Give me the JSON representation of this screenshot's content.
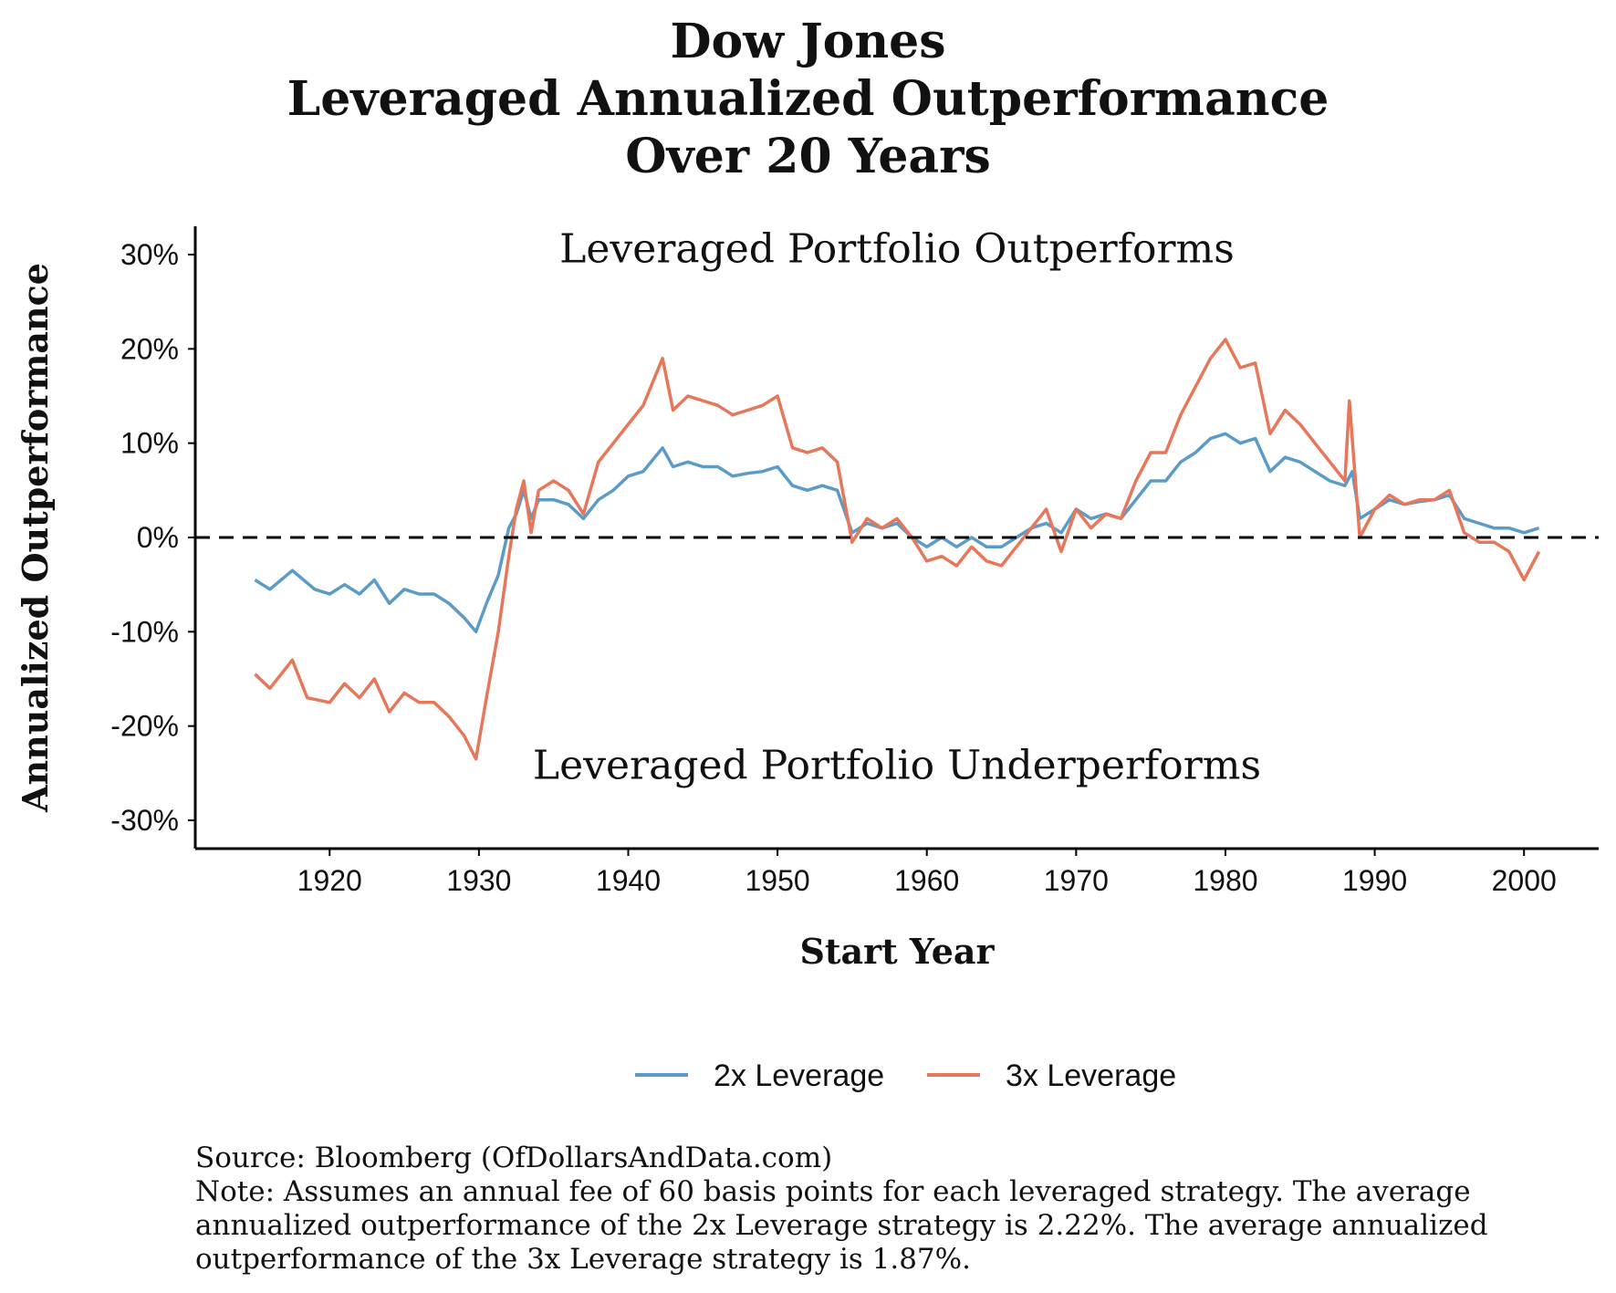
{
  "chart_data": {
    "type": "line",
    "title_lines": [
      "Dow Jones",
      "Leveraged Annualized Outperformance",
      "Over 20 Years"
    ],
    "xlabel": "Start Year",
    "ylabel": "Annualized Outperformance",
    "xlim": [
      1911,
      2005
    ],
    "ylim": [
      -33,
      33
    ],
    "xticks": [
      1920,
      1930,
      1940,
      1950,
      1960,
      1970,
      1980,
      1990,
      2000
    ],
    "yticks": [
      -30,
      -20,
      -10,
      0,
      10,
      20,
      30
    ],
    "ytick_labels": [
      "-30%",
      "-20%",
      "-10%",
      "0%",
      "10%",
      "20%",
      "30%"
    ],
    "reference_line": {
      "y": 0,
      "style": "dashed",
      "color": "#000000"
    },
    "annotations": {
      "top": "Leveraged Portfolio Outperforms",
      "bottom": "Leveraged Portfolio Underperforms"
    },
    "legend_position": "bottom",
    "grid": false,
    "series": [
      {
        "name": "2x Leverage",
        "color": "#5b9bc7",
        "points": [
          [
            1915,
            -4.5
          ],
          [
            1916,
            -5.5
          ],
          [
            1917.5,
            -3.5
          ],
          [
            1919,
            -5.5
          ],
          [
            1920,
            -6
          ],
          [
            1921,
            -5
          ],
          [
            1922,
            -6
          ],
          [
            1923,
            -4.5
          ],
          [
            1924,
            -7
          ],
          [
            1925,
            -5.5
          ],
          [
            1926,
            -6
          ],
          [
            1927,
            -6
          ],
          [
            1928,
            -7
          ],
          [
            1929,
            -8.5
          ],
          [
            1929.8,
            -10
          ],
          [
            1930.5,
            -7
          ],
          [
            1931.3,
            -4
          ],
          [
            1932,
            1
          ],
          [
            1932.5,
            2.5
          ],
          [
            1933,
            5
          ],
          [
            1933.5,
            2
          ],
          [
            1934,
            4
          ],
          [
            1935,
            4
          ],
          [
            1936,
            3.5
          ],
          [
            1937,
            2
          ],
          [
            1938,
            4
          ],
          [
            1939,
            5
          ],
          [
            1940,
            6.5
          ],
          [
            1941,
            7
          ],
          [
            1942.3,
            9.5
          ],
          [
            1943,
            7.5
          ],
          [
            1944,
            8
          ],
          [
            1945,
            7.5
          ],
          [
            1946,
            7.5
          ],
          [
            1947,
            6.5
          ],
          [
            1948,
            6.8
          ],
          [
            1949,
            7
          ],
          [
            1950,
            7.5
          ],
          [
            1951,
            5.5
          ],
          [
            1952,
            5
          ],
          [
            1953,
            5.5
          ],
          [
            1954,
            5
          ],
          [
            1955,
            0.5
          ],
          [
            1956,
            1.5
          ],
          [
            1957,
            1
          ],
          [
            1958,
            1.5
          ],
          [
            1959,
            0
          ],
          [
            1960,
            -1
          ],
          [
            1961,
            0
          ],
          [
            1962,
            -1
          ],
          [
            1963,
            0
          ],
          [
            1964,
            -1
          ],
          [
            1965,
            -1
          ],
          [
            1966,
            0
          ],
          [
            1967,
            1
          ],
          [
            1968,
            1.5
          ],
          [
            1969,
            0.5
          ],
          [
            1970,
            3
          ],
          [
            1971,
            2
          ],
          [
            1972,
            2.5
          ],
          [
            1973,
            2
          ],
          [
            1974,
            4
          ],
          [
            1975,
            6
          ],
          [
            1976,
            6
          ],
          [
            1977,
            8
          ],
          [
            1978,
            9
          ],
          [
            1979,
            10.5
          ],
          [
            1980,
            11
          ],
          [
            1981,
            10
          ],
          [
            1982,
            10.5
          ],
          [
            1983,
            7
          ],
          [
            1984,
            8.5
          ],
          [
            1985,
            8
          ],
          [
            1986,
            7
          ],
          [
            1987,
            6
          ],
          [
            1988,
            5.5
          ],
          [
            1988.5,
            7
          ],
          [
            1989,
            2
          ],
          [
            1990,
            3
          ],
          [
            1991,
            4
          ],
          [
            1992,
            3.5
          ],
          [
            1993,
            3.8
          ],
          [
            1994,
            4
          ],
          [
            1995,
            4.5
          ],
          [
            1996,
            2
          ],
          [
            1997,
            1.5
          ],
          [
            1998,
            1
          ],
          [
            1999,
            1
          ],
          [
            2000,
            0.5
          ],
          [
            2001,
            1
          ]
        ]
      },
      {
        "name": "3x Leverage",
        "color": "#e6775a",
        "points": [
          [
            1915,
            -14.5
          ],
          [
            1916,
            -16
          ],
          [
            1917.5,
            -13
          ],
          [
            1918.5,
            -17
          ],
          [
            1920,
            -17.5
          ],
          [
            1921,
            -15.5
          ],
          [
            1922,
            -17
          ],
          [
            1923,
            -15
          ],
          [
            1924,
            -18.5
          ],
          [
            1925,
            -16.5
          ],
          [
            1926,
            -17.5
          ],
          [
            1927,
            -17.5
          ],
          [
            1928,
            -19
          ],
          [
            1929,
            -21
          ],
          [
            1929.8,
            -23.5
          ],
          [
            1930.5,
            -17
          ],
          [
            1931.3,
            -10
          ],
          [
            1932,
            -2
          ],
          [
            1932.5,
            3
          ],
          [
            1933,
            6
          ],
          [
            1933.5,
            0.5
          ],
          [
            1934,
            5
          ],
          [
            1935,
            6
          ],
          [
            1936,
            5
          ],
          [
            1937,
            2.5
          ],
          [
            1938,
            8
          ],
          [
            1939,
            10
          ],
          [
            1940,
            12
          ],
          [
            1941,
            14
          ],
          [
            1942.3,
            19
          ],
          [
            1943,
            13.5
          ],
          [
            1944,
            15
          ],
          [
            1945,
            14.5
          ],
          [
            1946,
            14
          ],
          [
            1947,
            13
          ],
          [
            1948,
            13.5
          ],
          [
            1949,
            14
          ],
          [
            1950,
            15
          ],
          [
            1951,
            9.5
          ],
          [
            1952,
            9
          ],
          [
            1953,
            9.5
          ],
          [
            1954,
            8
          ],
          [
            1955,
            -0.5
          ],
          [
            1956,
            2
          ],
          [
            1957,
            1
          ],
          [
            1958,
            2
          ],
          [
            1959,
            0
          ],
          [
            1960,
            -2.5
          ],
          [
            1961,
            -2
          ],
          [
            1962,
            -3
          ],
          [
            1963,
            -1
          ],
          [
            1964,
            -2.5
          ],
          [
            1965,
            -3
          ],
          [
            1966,
            -1
          ],
          [
            1967,
            1
          ],
          [
            1968,
            3
          ],
          [
            1969,
            -1.5
          ],
          [
            1970,
            3
          ],
          [
            1971,
            1
          ],
          [
            1972,
            2.5
          ],
          [
            1973,
            2
          ],
          [
            1974,
            6
          ],
          [
            1975,
            9
          ],
          [
            1976,
            9
          ],
          [
            1977,
            13
          ],
          [
            1978,
            16
          ],
          [
            1979,
            19
          ],
          [
            1980,
            21
          ],
          [
            1981,
            18
          ],
          [
            1982,
            18.5
          ],
          [
            1983,
            11
          ],
          [
            1984,
            13.5
          ],
          [
            1985,
            12
          ],
          [
            1986,
            10
          ],
          [
            1987,
            8
          ],
          [
            1988,
            6
          ],
          [
            1988.3,
            14.5
          ],
          [
            1989,
            0
          ],
          [
            1990,
            3
          ],
          [
            1991,
            4.5
          ],
          [
            1992,
            3.5
          ],
          [
            1993,
            4
          ],
          [
            1994,
            4
          ],
          [
            1995,
            5
          ],
          [
            1996,
            0.5
          ],
          [
            1997,
            -0.5
          ],
          [
            1998,
            -0.5
          ],
          [
            1999,
            -1.5
          ],
          [
            2000,
            -4.5
          ],
          [
            2001,
            -1.5
          ]
        ]
      }
    ]
  },
  "caption": {
    "source": "Source:  Bloomberg (OfDollarsAndData.com)",
    "note": "Note: Assumes an annual fee of 60 basis points for each leveraged strategy. The average annualized outperformance of the 2x Leverage strategy is 2.22%. The average annualized outperformance of the 3x Leverage strategy is 1.87%."
  }
}
